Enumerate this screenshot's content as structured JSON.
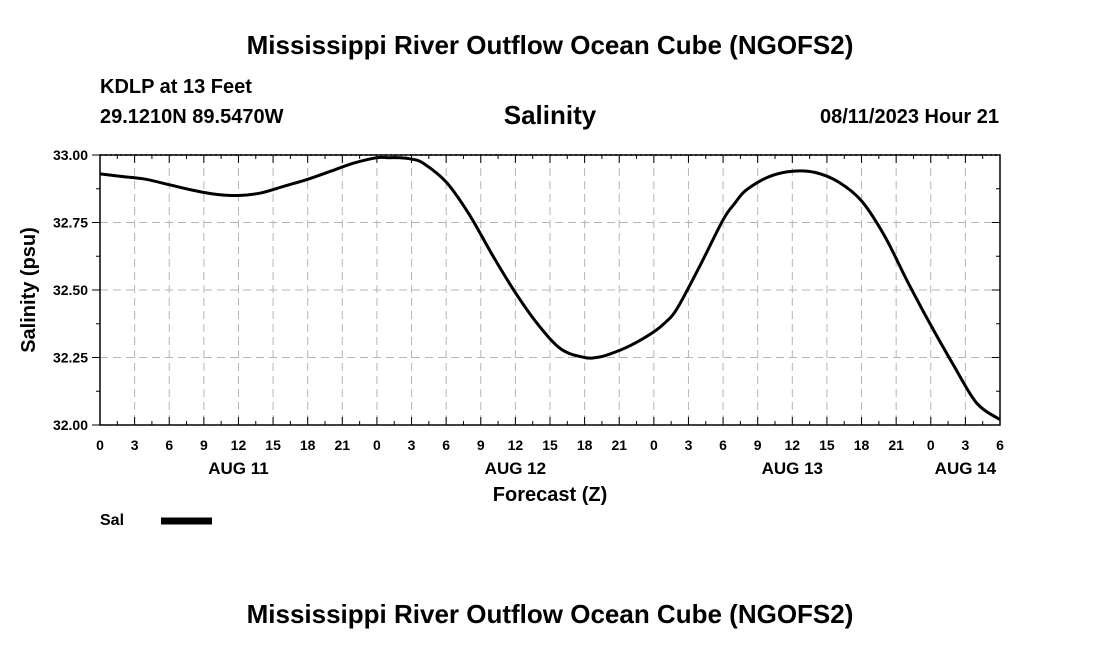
{
  "header": {
    "title": "Mississippi River Outflow Ocean Cube (NGOFS2)",
    "station": "KDLP at 13 Feet",
    "coords": "29.1210N  89.5470W",
    "subtitle": "Salinity",
    "datetime": "08/11/2023 Hour 21"
  },
  "footer": {
    "title": "Mississippi River Outflow Ocean Cube (NGOFS2)"
  },
  "chart_data": {
    "type": "line",
    "title": "Salinity",
    "xlabel": "Forecast (Z)",
    "ylabel": "Salinity (psu)",
    "ylim": [
      32.0,
      33.0
    ],
    "yticks": [
      32.0,
      32.25,
      32.5,
      32.75,
      33.0
    ],
    "ytick_labels": [
      "32.00",
      "32.25",
      "32.50",
      "32.75",
      "33.00"
    ],
    "xlim_hours": [
      0,
      78
    ],
    "xtick_hours": [
      0,
      3,
      6,
      9,
      12,
      15,
      18,
      21,
      24,
      27,
      30,
      33,
      36,
      39,
      42,
      45,
      48,
      51,
      54,
      57,
      60,
      63,
      66,
      69,
      72,
      75,
      78
    ],
    "xtick_labels": [
      "0",
      "3",
      "6",
      "9",
      "12",
      "15",
      "18",
      "21",
      "0",
      "3",
      "6",
      "9",
      "12",
      "15",
      "18",
      "21",
      "0",
      "3",
      "6",
      "9",
      "12",
      "15",
      "18",
      "21",
      "0",
      "3",
      "6"
    ],
    "date_labels": [
      {
        "label": "AUG 11",
        "hour": 12
      },
      {
        "label": "AUG 12",
        "hour": 36
      },
      {
        "label": "AUG 13",
        "hour": 60
      },
      {
        "label": "AUG 14",
        "hour": 75
      }
    ],
    "grid": true,
    "legend": {
      "position": "bottom-left",
      "entries": [
        {
          "name": "Sal",
          "color": "#000000"
        }
      ]
    },
    "series": [
      {
        "name": "Sal",
        "color": "#000000",
        "x": [
          0,
          2,
          4,
          6,
          8,
          10,
          12,
          14,
          16,
          18,
          20,
          22,
          24,
          25,
          26,
          27,
          28,
          30,
          32,
          34,
          36,
          38,
          40,
          42,
          43,
          44,
          46,
          48,
          49,
          50,
          52,
          54,
          55,
          56,
          58,
          60,
          62,
          64,
          66,
          68,
          70,
          72,
          74,
          76,
          78
        ],
        "values": [
          32.93,
          32.92,
          32.91,
          32.89,
          32.87,
          32.855,
          32.85,
          32.86,
          32.885,
          32.91,
          32.94,
          32.97,
          32.99,
          32.99,
          32.99,
          32.985,
          32.97,
          32.9,
          32.78,
          32.63,
          32.49,
          32.37,
          32.28,
          32.25,
          32.25,
          32.26,
          32.295,
          32.345,
          32.38,
          32.43,
          32.59,
          32.76,
          32.82,
          32.87,
          32.92,
          32.94,
          32.935,
          32.9,
          32.83,
          32.7,
          32.53,
          32.37,
          32.22,
          32.08,
          32.02
        ]
      }
    ]
  }
}
